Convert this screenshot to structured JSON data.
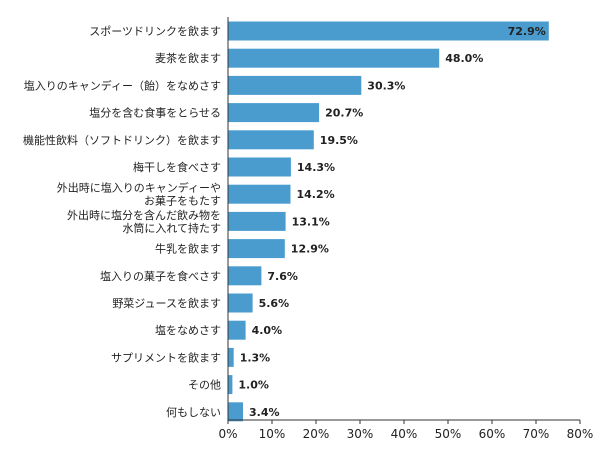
{
  "chart_data": {
    "type": "bar",
    "orientation": "horizontal",
    "categories": [
      [
        "スポーツドリンクを飲ます"
      ],
      [
        "麦茶を飲ます"
      ],
      [
        "塩入りのキャンディー（飴）をなめさす"
      ],
      [
        "塩分を含む食事をとらせる"
      ],
      [
        "機能性飲料（ソフトドリンク）を飲ます"
      ],
      [
        "梅干しを食べさす"
      ],
      [
        "外出時に塩入りのキャンディーや",
        "お菓子をもたす"
      ],
      [
        "外出時に塩分を含んだ飲み物を",
        "水筒に入れて持たす"
      ],
      [
        "牛乳を飲ます"
      ],
      [
        "塩入りの菓子を食べさす"
      ],
      [
        "野菜ジュースを飲ます"
      ],
      [
        "塩をなめさす"
      ],
      [
        "サプリメントを飲ます"
      ],
      [
        "その他"
      ],
      [
        "何もしない"
      ]
    ],
    "values": [
      72.9,
      48.0,
      30.3,
      20.7,
      19.5,
      14.3,
      14.2,
      13.1,
      12.9,
      7.6,
      5.6,
      4.0,
      1.3,
      1.0,
      3.4
    ],
    "value_labels": [
      "72.9%",
      "48.0%",
      "30.3%",
      "20.7%",
      "19.5%",
      "14.3%",
      "14.2%",
      "13.1%",
      "12.9%",
      "7.6%",
      "5.6%",
      "4.0%",
      "1.3%",
      "1.0%",
      "3.4%"
    ],
    "xlim": [
      0,
      80
    ],
    "xticks": [
      0,
      10,
      20,
      30,
      40,
      50,
      60,
      70,
      80
    ],
    "xtick_labels": [
      "0%",
      "10%",
      "20%",
      "30%",
      "40%",
      "50%",
      "60%",
      "70%",
      "80%"
    ],
    "grid": false,
    "legend": "none",
    "bar_color": "#4a9ccf",
    "axis_color": "#333333"
  }
}
